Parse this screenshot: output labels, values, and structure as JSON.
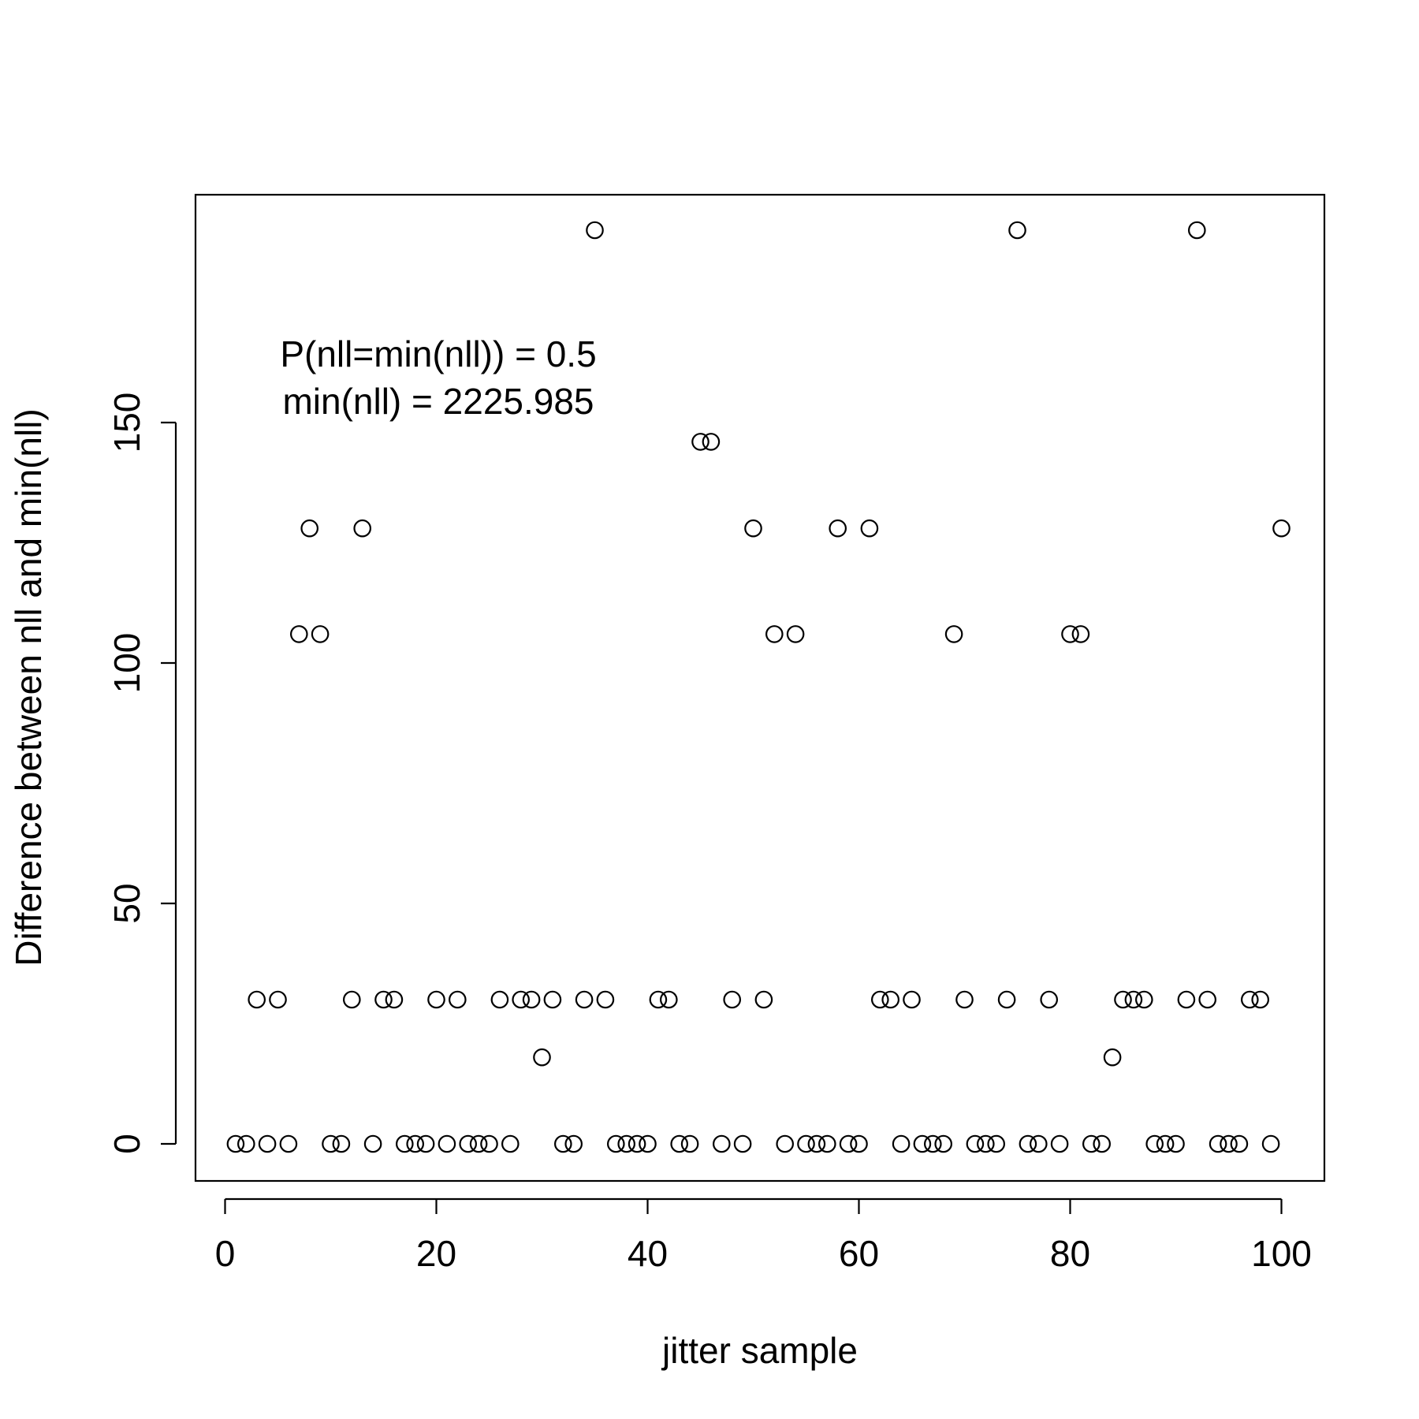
{
  "chart_data": {
    "type": "scatter",
    "title": "",
    "xlabel": "jitter sample",
    "ylabel": "Difference between nll and min(nll)",
    "xlim": [
      0,
      100
    ],
    "ylim": [
      0,
      190
    ],
    "grid": false,
    "x_ticks": [
      0,
      20,
      40,
      60,
      80,
      100
    ],
    "y_ticks": [
      0,
      50,
      100,
      150
    ],
    "annotations": [
      "P(nll=min(nll)) = 0.5",
      "min(nll) = 2225.985"
    ],
    "series": [
      {
        "x": [
          1,
          2,
          3,
          4,
          5,
          6,
          7,
          8,
          9,
          10,
          11,
          12,
          13,
          14,
          15,
          16,
          17,
          18,
          19,
          20,
          21,
          22,
          23,
          24,
          25,
          26,
          27,
          28,
          29,
          30,
          31,
          32,
          33,
          34,
          35,
          36,
          37,
          38,
          39,
          40,
          41,
          42,
          43,
          44,
          45,
          46,
          47,
          48,
          49,
          50,
          51,
          52,
          53,
          54,
          55,
          56,
          57,
          58,
          59,
          60,
          61,
          62,
          63,
          64,
          65,
          66,
          67,
          68,
          69,
          70,
          71,
          72,
          73,
          74,
          75,
          76,
          77,
          78,
          79,
          80,
          81,
          82,
          83,
          84,
          85,
          86,
          87,
          88,
          89,
          90,
          91,
          92,
          93,
          94,
          95,
          96,
          97,
          98,
          99,
          100
        ],
        "values": [
          0,
          0,
          30,
          0,
          30,
          0,
          106,
          128,
          106,
          0,
          0,
          30,
          128,
          0,
          30,
          30,
          0,
          0,
          0,
          30,
          0,
          30,
          0,
          0,
          0,
          30,
          0,
          30,
          30,
          18,
          30,
          0,
          0,
          30,
          190,
          30,
          0,
          0,
          0,
          0,
          30,
          30,
          0,
          0,
          146,
          146,
          0,
          30,
          0,
          128,
          30,
          106,
          0,
          106,
          0,
          0,
          0,
          128,
          0,
          0,
          128,
          30,
          30,
          0,
          30,
          0,
          0,
          0,
          106,
          30,
          0,
          0,
          0,
          30,
          190,
          0,
          0,
          30,
          0,
          106,
          106,
          0,
          0,
          18,
          30,
          30,
          30,
          0,
          0,
          0,
          30,
          190,
          30,
          0,
          0,
          0,
          30,
          30,
          0,
          128
        ]
      }
    ]
  }
}
